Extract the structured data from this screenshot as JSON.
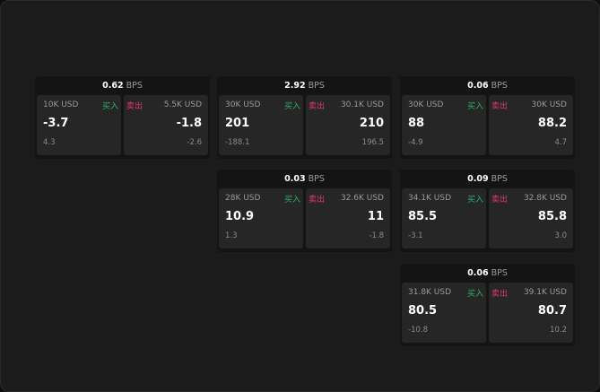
{
  "labels": {
    "buy": "买入",
    "sell": "卖出",
    "unit": "BPS"
  },
  "colors": {
    "buy": "#2fb36a",
    "sell": "#e0386a"
  },
  "cards": [
    {
      "spread": "0.62",
      "buy": {
        "qty": "10K USD",
        "price": "-3.7",
        "change": "4.3"
      },
      "sell": {
        "qty": "5.5K USD",
        "price": "-1.8",
        "change": "-2.6"
      }
    },
    {
      "spread": "2.92",
      "buy": {
        "qty": "30K USD",
        "price": "201",
        "change": "-188.1"
      },
      "sell": {
        "qty": "30.1K USD",
        "price": "210",
        "change": "196.5"
      }
    },
    {
      "spread": "0.06",
      "buy": {
        "qty": "30K USD",
        "price": "88",
        "change": "-4.9"
      },
      "sell": {
        "qty": "30K USD",
        "price": "88.2",
        "change": "4.7"
      }
    },
    {
      "spread": "0.03",
      "buy": {
        "qty": "28K USD",
        "price": "10.9",
        "change": "1.3"
      },
      "sell": {
        "qty": "32.6K USD",
        "price": "11",
        "change": "-1.8"
      }
    },
    {
      "spread": "0.09",
      "buy": {
        "qty": "34.1K USD",
        "price": "85.5",
        "change": "-3.1"
      },
      "sell": {
        "qty": "32.8K USD",
        "price": "85.8",
        "change": "3.0"
      }
    },
    {
      "spread": "0.06",
      "buy": {
        "qty": "31.8K USD",
        "price": "80.5",
        "change": "-10.8"
      },
      "sell": {
        "qty": "39.1K USD",
        "price": "80.7",
        "change": "10.2"
      }
    }
  ]
}
